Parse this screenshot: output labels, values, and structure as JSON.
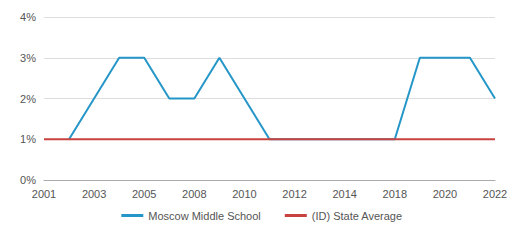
{
  "chart_data": {
    "type": "line",
    "categories": [
      "2001",
      null,
      "2003",
      null,
      "2005",
      null,
      "2008",
      null,
      "2010",
      null,
      "2012",
      null,
      "2014",
      null,
      "2018",
      null,
      "2020",
      null,
      "2022"
    ],
    "series": [
      {
        "name": "Moscow Middle School",
        "color": "#2596c8",
        "values": [
          null,
          1,
          2,
          3,
          3,
          2,
          2,
          3,
          2,
          1,
          1,
          1,
          1,
          1,
          1,
          3,
          3,
          3,
          2
        ]
      },
      {
        "name": "(ID) State Average",
        "color": "#c8423f",
        "values": [
          1,
          1,
          1,
          1,
          1,
          1,
          1,
          1,
          1,
          1,
          1,
          1,
          1,
          1,
          1,
          1,
          1,
          1,
          1
        ]
      }
    ],
    "ylim": [
      0,
      4
    ],
    "yticks": [
      {
        "value": 0,
        "label": "0%"
      },
      {
        "value": 1,
        "label": "1%"
      },
      {
        "value": 2,
        "label": "2%"
      },
      {
        "value": 3,
        "label": "3%"
      },
      {
        "value": 4,
        "label": "4%"
      }
    ],
    "grid": true,
    "legend": "bottom"
  }
}
